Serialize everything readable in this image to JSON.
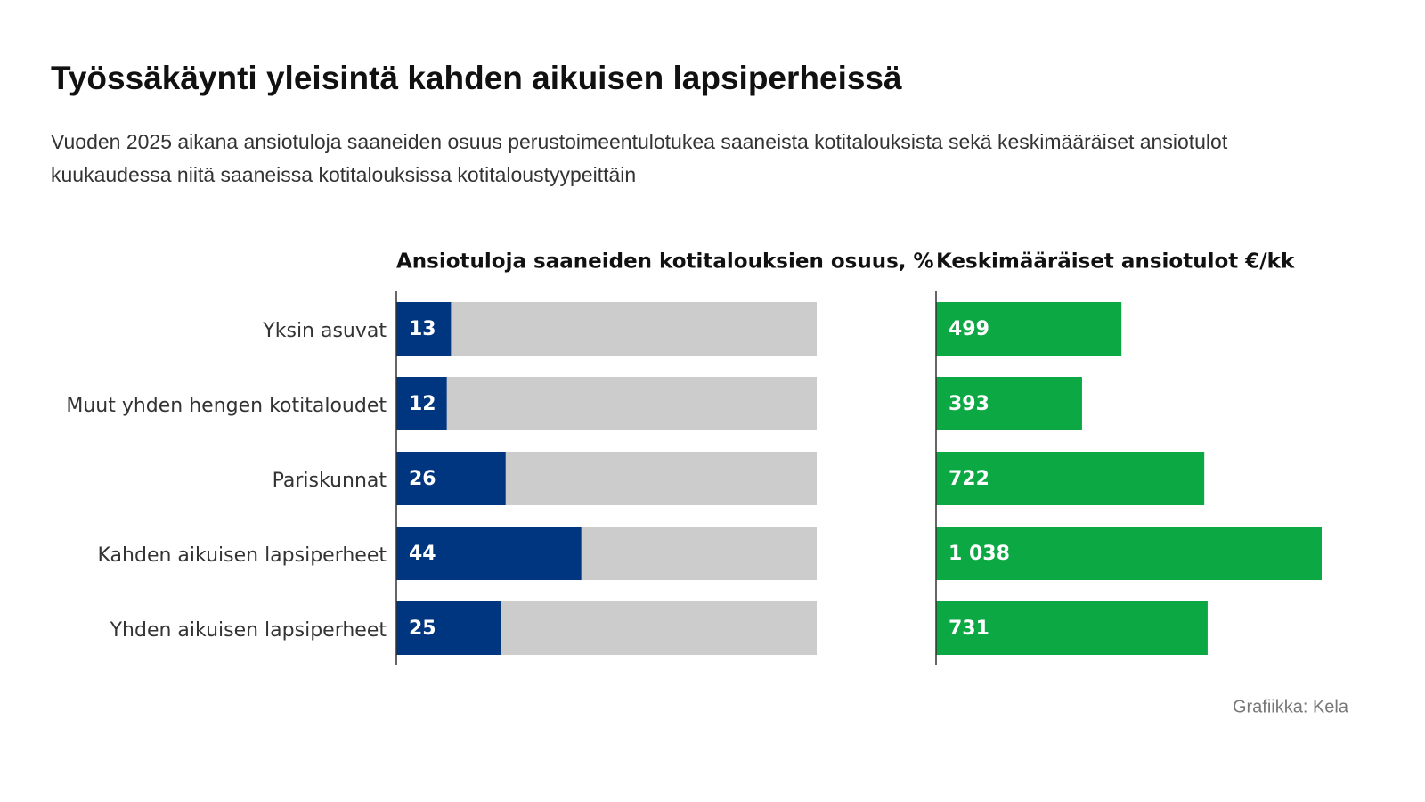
{
  "title": "Työssäkäynti yleisintä kahden aikuisen lapsiperheissä",
  "subtitle": [
    "Vuoden 2025 aikana ansiotuloja saaneiden osuus perustoimeentulotukea saaneista kotitalouksista sekä keskimääräiset ansiotulot",
    "kuukaudessa niitä saaneissa kotitalouksissa kotitaloustyypeittäin"
  ],
  "source": "Grafiikka: Kela",
  "chart_data": [
    {
      "type": "bar",
      "title": "Ansiotuloja saaneiden kotitalouksien osuus, %",
      "categories": [
        "Yksin asuvat",
        "Muut yhden hengen kotitaloudet",
        "Pariskunnat",
        "Kahden aikuisen lapsiperheet",
        "Yhden aikuisen lapsiperheet"
      ],
      "values": [
        13,
        12,
        26,
        44,
        25
      ],
      "color": "#003580",
      "track_color": "#cccccc",
      "xlim": [
        0,
        100
      ]
    },
    {
      "type": "bar",
      "title": "Keskimääräiset ansiotulot €/kk",
      "values": [
        499,
        393,
        722,
        1038,
        731
      ],
      "value_labels": [
        "499",
        "393",
        "722",
        "1 038",
        "731"
      ],
      "color": "#0ca843",
      "xlim": [
        0,
        1038
      ]
    }
  ]
}
